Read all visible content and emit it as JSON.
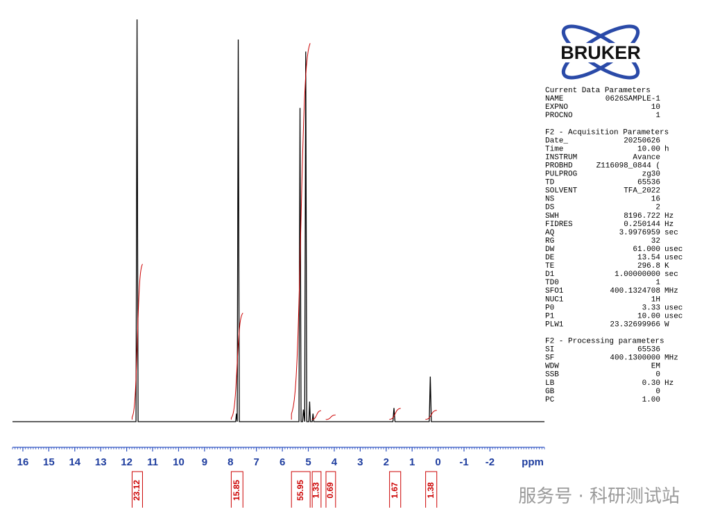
{
  "chart_data": {
    "type": "line",
    "xlabel": "ppm",
    "x": [
      16.4,
      11.64,
      11.6,
      11.56,
      7.8,
      7.77,
      7.74,
      7.7,
      7.66,
      5.36,
      5.32,
      5.28,
      5.22,
      5.19,
      5.14,
      5.1,
      5.06,
      4.98,
      4.95,
      4.92,
      4.85,
      4.82,
      4.79,
      1.74,
      1.7,
      1.66,
      0.34,
      0.3,
      0.26,
      -4.1
    ],
    "values": [
      0,
      0,
      100,
      0,
      0,
      2,
      0,
      95,
      0,
      0,
      78,
      0,
      0,
      3,
      0,
      92,
      0,
      0,
      5,
      0,
      0,
      2,
      0,
      0,
      3.4,
      0,
      0,
      11.2,
      0,
      0
    ],
    "color": "#000000",
    "xlim": [
      16.4,
      -4.1
    ],
    "ylim": [
      0,
      100
    ],
    "xticks": [
      16,
      15,
      14,
      13,
      12,
      11,
      10,
      9,
      8,
      7,
      6,
      5,
      4,
      3,
      2,
      1,
      0,
      -1,
      -2
    ],
    "minor_tick_step": 0.1,
    "integral_color": "#cc0000",
    "integrals": [
      {
        "range": [
          11.79,
          11.39
        ],
        "value": 23.12
      },
      {
        "range": [
          7.97,
          7.52
        ],
        "value": 15.85
      },
      {
        "range": [
          5.65,
          4.93
        ],
        "value": 55.95
      },
      {
        "range": [
          4.85,
          4.51
        ],
        "value": 1.33
      },
      {
        "range": [
          4.32,
          3.95
        ],
        "value": 0.69
      },
      {
        "range": [
          1.87,
          1.44
        ],
        "value": 1.67
      },
      {
        "range": [
          0.48,
          0.05
        ],
        "value": 1.38
      }
    ]
  },
  "logo": "BRUKER",
  "parameters": [
    {
      "title": "Current Data Parameters",
      "rows": [
        [
          "NAME",
          "0626SAMPLE-1"
        ],
        [
          "EXPNO",
          "10"
        ],
        [
          "PROCNO",
          "1"
        ]
      ]
    },
    {
      "title": "F2 - Acquisition Parameters",
      "rows": [
        [
          "Date_",
          "20250626"
        ],
        [
          "Time",
          "10.00",
          "h"
        ],
        [
          "INSTRUM",
          "Avance"
        ],
        [
          "PROBHD",
          "Z116098_0844 ("
        ],
        [
          "PULPROG",
          "zg30"
        ],
        [
          "TD",
          "65536"
        ],
        [
          "SOLVENT",
          "TFA_2022"
        ],
        [
          "NS",
          "16"
        ],
        [
          "DS",
          "2"
        ],
        [
          "SWH",
          "8196.722",
          "Hz"
        ],
        [
          "FIDRES",
          "0.250144",
          "Hz"
        ],
        [
          "AQ",
          "3.9976959",
          "sec"
        ],
        [
          "RG",
          "32"
        ],
        [
          "DW",
          "61.000",
          "usec"
        ],
        [
          "DE",
          "13.54",
          "usec"
        ],
        [
          "TE",
          "296.8",
          "K"
        ],
        [
          "D1",
          "1.00000000",
          "sec"
        ],
        [
          "TD0",
          "1"
        ],
        [
          "SFO1",
          "400.1324708",
          "MHz"
        ],
        [
          "NUC1",
          "1H"
        ],
        [
          "P0",
          "3.33",
          "usec"
        ],
        [
          "P1",
          "10.00",
          "usec"
        ],
        [
          "PLW1",
          "23.32699966",
          "W"
        ]
      ]
    },
    {
      "title": "F2 - Processing parameters",
      "rows": [
        [
          "SI",
          "65536"
        ],
        [
          "SF",
          "400.1300000",
          "MHz"
        ],
        [
          "WDW",
          "EM"
        ],
        [
          "SSB",
          "0"
        ],
        [
          "LB",
          "0.30",
          "Hz"
        ],
        [
          "GB",
          "0"
        ],
        [
          "PC",
          "1.00"
        ]
      ]
    }
  ],
  "watermark": "服务号 · 科研测试站"
}
